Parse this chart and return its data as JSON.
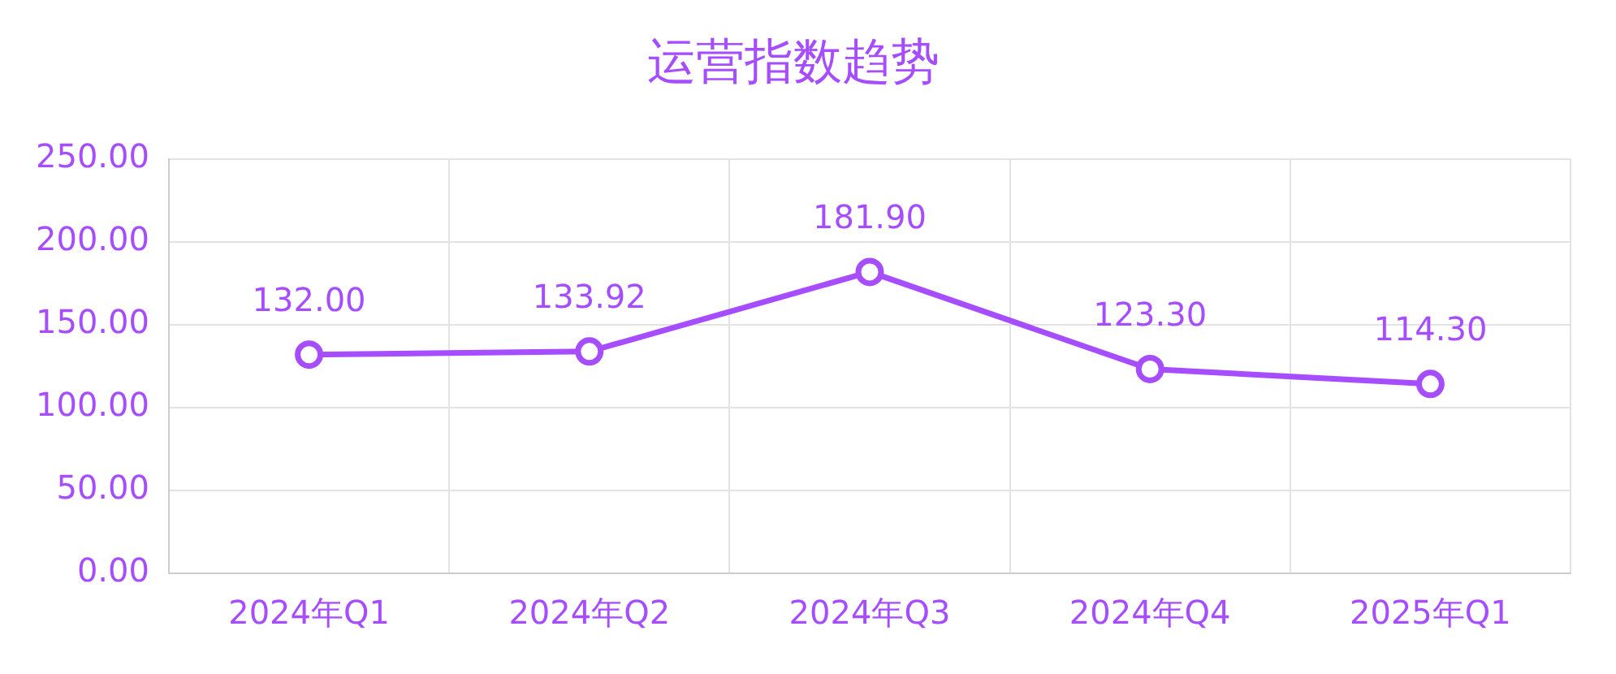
{
  "chart_data": {
    "type": "line",
    "title": "运营指数趋势",
    "categories": [
      "2024年Q1",
      "2024年Q2",
      "2024年Q3",
      "2024年Q4",
      "2025年Q1"
    ],
    "series": [
      {
        "color": "#a64dff",
        "values": [
          132.0,
          133.92,
          181.9,
          123.3,
          114.3
        ],
        "value_labels": [
          "132.00",
          "133.92",
          "181.90",
          "123.30",
          "114.30"
        ]
      }
    ],
    "ylim": [
      0,
      250
    ],
    "yticks": [
      {
        "value": 0,
        "label": "0.00"
      },
      {
        "value": 50,
        "label": "50.00"
      },
      {
        "value": 100,
        "label": "100.00"
      },
      {
        "value": 150,
        "label": "150.00"
      },
      {
        "value": 200,
        "label": "200.00"
      },
      {
        "value": 250,
        "label": "250.00"
      }
    ],
    "grid": true,
    "legend": false,
    "marker": "circle",
    "line_style": "solid"
  }
}
